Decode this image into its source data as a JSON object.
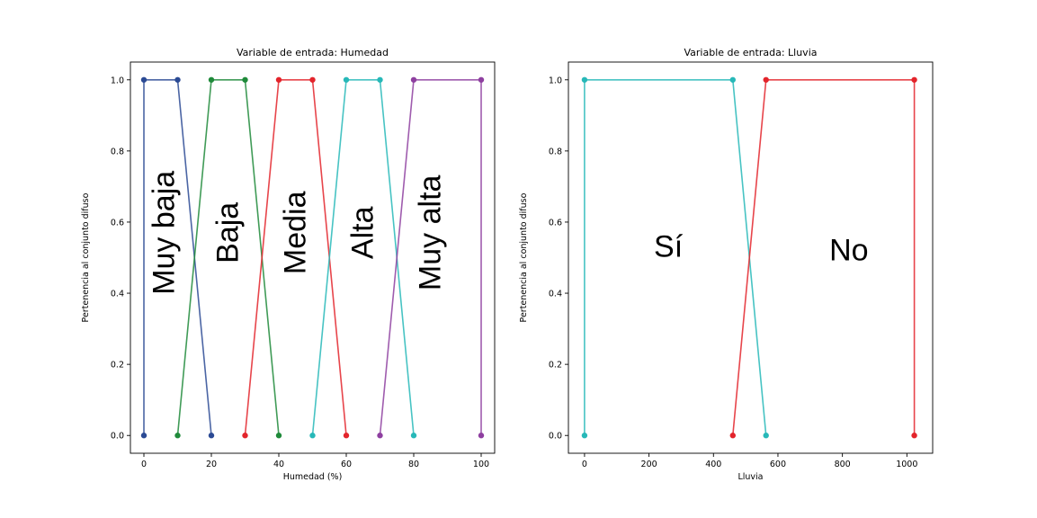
{
  "chart_data": [
    {
      "type": "line",
      "title": "Variable de entrada: Humedad",
      "xlabel": "Humedad (%)",
      "ylabel": "Pertenencia al conjunto difuso",
      "xlim": [
        -4,
        104
      ],
      "ylim": [
        -0.05,
        1.05
      ],
      "xticks": [
        0,
        20,
        40,
        60,
        80,
        100
      ],
      "yticks": [
        0.0,
        0.2,
        0.4,
        0.6,
        0.8,
        1.0
      ],
      "series": [
        {
          "name": "Muy baja",
          "color": "#2b4a94",
          "points": [
            [
              0,
              0
            ],
            [
              0,
              1
            ],
            [
              10,
              1
            ],
            [
              20,
              0
            ]
          ]
        },
        {
          "name": "Baja",
          "color": "#1f8a3a",
          "points": [
            [
              10,
              0
            ],
            [
              20,
              1
            ],
            [
              30,
              1
            ],
            [
              40,
              0
            ]
          ]
        },
        {
          "name": "Media",
          "color": "#e3242b",
          "points": [
            [
              30,
              0
            ],
            [
              40,
              1
            ],
            [
              50,
              1
            ],
            [
              60,
              0
            ]
          ]
        },
        {
          "name": "Alta",
          "color": "#27b8b8",
          "points": [
            [
              50,
              0
            ],
            [
              60,
              1
            ],
            [
              70,
              1
            ],
            [
              80,
              0
            ]
          ]
        },
        {
          "name": "Muy alta",
          "color": "#8e3fa0",
          "points": [
            [
              70,
              0
            ],
            [
              80,
              1
            ],
            [
              100,
              1
            ],
            [
              100,
              0
            ]
          ]
        }
      ],
      "annotations": [
        {
          "text": "Muy baja",
          "x": 6,
          "y": 0.57,
          "rotation": -90
        },
        {
          "text": "Baja",
          "x": 25,
          "y": 0.57,
          "rotation": -90
        },
        {
          "text": "Media",
          "x": 45,
          "y": 0.57,
          "rotation": -90
        },
        {
          "text": "Alta",
          "x": 65,
          "y": 0.57,
          "rotation": -90
        },
        {
          "text": "Muy alta",
          "x": 85,
          "y": 0.57,
          "rotation": -90
        }
      ]
    },
    {
      "type": "line",
      "title": "Variable de entrada: Lluvia",
      "xlabel": "Lluvia",
      "ylabel": "Pertenencia al conjunto difuso",
      "xlim": [
        -50,
        1080
      ],
      "ylim": [
        -0.05,
        1.05
      ],
      "xticks": [
        0,
        200,
        400,
        600,
        800,
        1000
      ],
      "yticks": [
        0.0,
        0.2,
        0.4,
        0.6,
        0.8,
        1.0
      ],
      "series": [
        {
          "name": "Sí",
          "color": "#27b8b8",
          "points": [
            [
              0,
              0
            ],
            [
              0,
              1
            ],
            [
              460,
              1
            ],
            [
              563,
              0
            ]
          ]
        },
        {
          "name": "No",
          "color": "#e3242b",
          "points": [
            [
              460,
              0
            ],
            [
              563,
              1
            ],
            [
              1023,
              1
            ],
            [
              1023,
              0
            ]
          ]
        }
      ],
      "annotations": [
        {
          "text": "Sí",
          "x": 260,
          "y": 0.53,
          "rotation": 0
        },
        {
          "text": "No",
          "x": 820,
          "y": 0.52,
          "rotation": 0
        }
      ]
    }
  ]
}
